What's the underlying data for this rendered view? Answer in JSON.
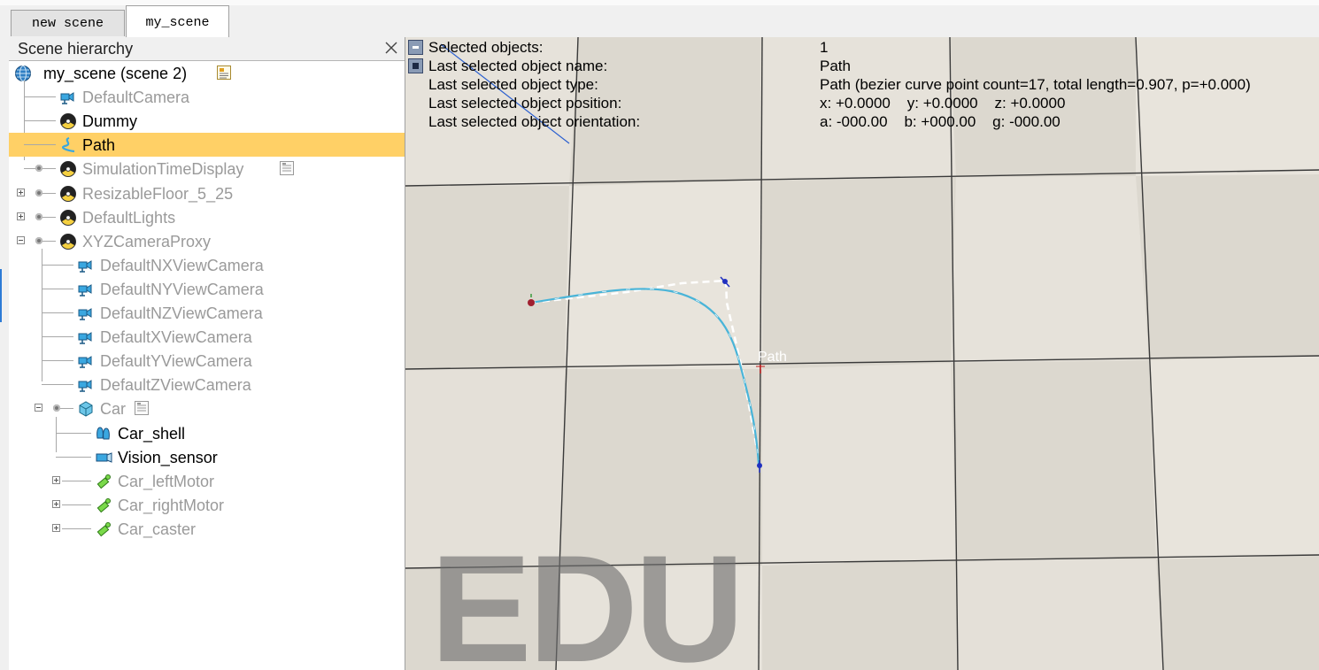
{
  "tabs": [
    {
      "label": "new scene",
      "active": false
    },
    {
      "label": "my_scene",
      "active": true
    }
  ],
  "hierarchy": {
    "title": "Scene hierarchy",
    "scene_label": "my_scene (scene 2)",
    "items": [
      {
        "label": "DefaultCamera",
        "icon": "camera-icon",
        "style": "gray"
      },
      {
        "label": "Dummy",
        "icon": "dummy-icon",
        "style": "black"
      },
      {
        "label": "Path",
        "icon": "path-icon",
        "style": "black",
        "selected": true
      },
      {
        "label": "SimulationTimeDisplay",
        "icon": "dummy-icon",
        "style": "gray",
        "script": true
      },
      {
        "label": "ResizableFloor_5_25",
        "icon": "dummy-icon",
        "style": "gray",
        "expand": "plus"
      },
      {
        "label": "DefaultLights",
        "icon": "dummy-icon",
        "style": "gray",
        "expand": "plus"
      },
      {
        "label": "XYZCameraProxy",
        "icon": "dummy-icon",
        "style": "gray",
        "expand": "minus"
      },
      {
        "label": "DefaultNXViewCamera",
        "icon": "camera-icon",
        "style": "gray"
      },
      {
        "label": "DefaultNYViewCamera",
        "icon": "camera-icon",
        "style": "gray"
      },
      {
        "label": "DefaultNZViewCamera",
        "icon": "camera-icon",
        "style": "gray"
      },
      {
        "label": "DefaultXViewCamera",
        "icon": "camera-icon",
        "style": "gray"
      },
      {
        "label": "DefaultYViewCamera",
        "icon": "camera-icon",
        "style": "gray"
      },
      {
        "label": "DefaultZViewCamera",
        "icon": "camera-icon",
        "style": "gray"
      },
      {
        "label": "Car",
        "icon": "cube-icon",
        "style": "gray",
        "expand": "minus",
        "script": true
      },
      {
        "label": "Car_shell",
        "icon": "shape-icon",
        "style": "black"
      },
      {
        "label": "Vision_sensor",
        "icon": "vision-sensor-icon",
        "style": "black"
      },
      {
        "label": "Car_leftMotor",
        "icon": "joint-icon",
        "style": "gray",
        "expand": "plus"
      },
      {
        "label": "Car_rightMotor",
        "icon": "joint-icon",
        "style": "gray",
        "expand": "plus"
      },
      {
        "label": "Car_caster",
        "icon": "joint-icon",
        "style": "gray",
        "expand": "plus"
      }
    ]
  },
  "info": {
    "selected_objects_key": "Selected objects:",
    "selected_objects_val": "1",
    "name_key": "Last selected object name:",
    "name_val": "Path",
    "type_key": "Last selected object type:",
    "type_val": "Path (bezier curve point count=17, total length=0.907, p=+0.000)",
    "position_key": "Last selected object position:",
    "position_val": "x: +0.0000    y: +0.0000    z: +0.0000",
    "orientation_key": "Last selected object orientation:",
    "orientation_val": "a: -000.00    b: +000.00    g: -000.00"
  },
  "viewport": {
    "path_label": "Path",
    "watermark": "EDU"
  },
  "colors": {
    "selection": "#ffd066",
    "path_curve": "#5fc8e0",
    "floor_light": "#e6e2da",
    "floor_dark": "#d2cec6"
  }
}
